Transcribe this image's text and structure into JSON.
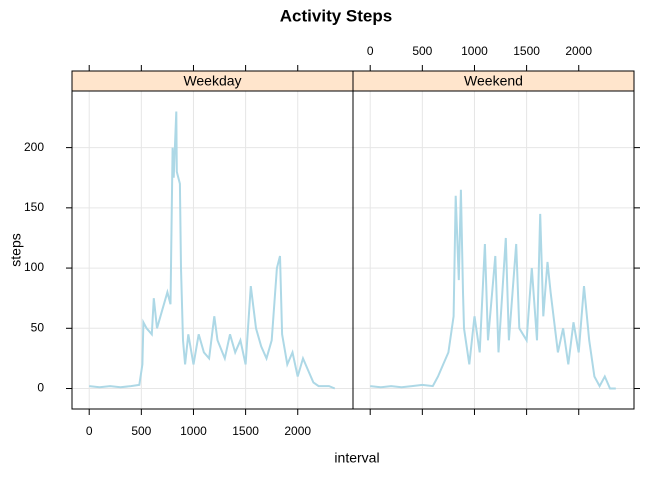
{
  "title": "Activity Steps",
  "x_label": "interval",
  "y_label": "steps",
  "chart_data": [
    {
      "type": "line",
      "panel": "Weekday",
      "color": "#add8e6",
      "grid": true,
      "x_tick_labels": "bottom",
      "y_tick_labels": "left",
      "xlim": [
        -165,
        2530
      ],
      "ylim": [
        -17,
        247
      ],
      "xticks": [
        0,
        500,
        1000,
        1500,
        2000
      ],
      "yticks": [
        0,
        50,
        100,
        150,
        200
      ],
      "x": [
        0,
        100,
        200,
        300,
        400,
        480,
        510,
        520,
        550,
        600,
        620,
        650,
        700,
        750,
        780,
        800,
        810,
        835,
        840,
        870,
        880,
        900,
        920,
        950,
        1000,
        1050,
        1100,
        1150,
        1200,
        1230,
        1300,
        1350,
        1400,
        1450,
        1500,
        1550,
        1600,
        1650,
        1700,
        1750,
        1800,
        1830,
        1850,
        1900,
        1950,
        2000,
        2050,
        2100,
        2150,
        2200,
        2300,
        2355
      ],
      "values": [
        2,
        1,
        2,
        1,
        2,
        3,
        20,
        55,
        50,
        45,
        75,
        50,
        65,
        80,
        70,
        200,
        175,
        230,
        180,
        170,
        100,
        40,
        20,
        45,
        20,
        45,
        30,
        25,
        60,
        40,
        25,
        45,
        30,
        40,
        20,
        85,
        50,
        35,
        25,
        40,
        100,
        110,
        45,
        20,
        30,
        10,
        25,
        15,
        5,
        2,
        2,
        0
      ]
    },
    {
      "type": "line",
      "panel": "Weekend",
      "color": "#add8e6",
      "grid": true,
      "x_tick_labels": "top",
      "y_tick_labels": "none",
      "xlim": [
        -165,
        2530
      ],
      "ylim": [
        -17,
        247
      ],
      "xticks": [
        0,
        500,
        1000,
        1500,
        2000
      ],
      "yticks": [
        0,
        50,
        100,
        150,
        200
      ],
      "x": [
        0,
        100,
        200,
        300,
        400,
        500,
        600,
        650,
        700,
        750,
        800,
        820,
        850,
        870,
        890,
        900,
        950,
        1000,
        1050,
        1100,
        1130,
        1200,
        1230,
        1300,
        1330,
        1400,
        1430,
        1500,
        1550,
        1600,
        1630,
        1660,
        1700,
        1730,
        1800,
        1850,
        1900,
        1950,
        2000,
        2050,
        2100,
        2150,
        2200,
        2250,
        2300,
        2355
      ],
      "values": [
        2,
        1,
        2,
        1,
        2,
        3,
        2,
        10,
        20,
        30,
        60,
        160,
        90,
        165,
        80,
        50,
        20,
        60,
        30,
        120,
        40,
        110,
        30,
        125,
        40,
        120,
        50,
        40,
        100,
        40,
        145,
        60,
        105,
        80,
        30,
        50,
        20,
        55,
        30,
        85,
        40,
        10,
        2,
        10,
        0,
        0
      ]
    }
  ]
}
